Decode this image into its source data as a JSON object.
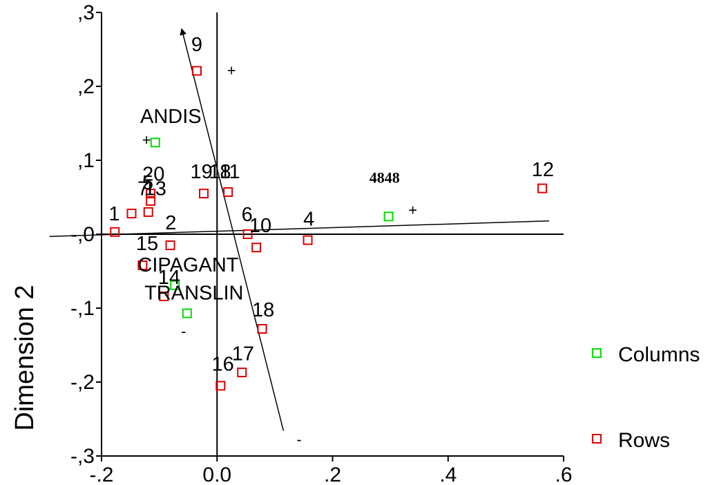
{
  "chart_data": {
    "type": "scatter",
    "title": "",
    "xlabel": "",
    "ylabel": "Dimension 2",
    "xlim": [
      -0.2,
      0.6
    ],
    "ylim": [
      -0.3,
      0.3
    ],
    "x_ticks": [
      "-,2",
      "0,0",
      ",2",
      ",4",
      ",6"
    ],
    "y_ticks": [
      ",3",
      ",2",
      ",1",
      "-,0",
      "-,1",
      "-,2",
      "-,3"
    ],
    "x_tick_values": [
      -0.2,
      0.0,
      0.2,
      0.4,
      0.6
    ],
    "y_tick_values": [
      0.3,
      0.2,
      0.1,
      0.0,
      -0.1,
      -0.2,
      -0.3
    ],
    "legend": [
      {
        "name": "Columns",
        "color": "#00dd00"
      },
      {
        "name": "Rows",
        "color": "#dd0000"
      }
    ],
    "legend_position": "right",
    "series": [
      {
        "name": "Columns",
        "color": "#00dd00",
        "points": [
          {
            "x": -0.107,
            "y": 0.124
          },
          {
            "x": -0.073,
            "y": -0.069
          },
          {
            "x": -0.052,
            "y": -0.107
          },
          {
            "x": 0.297,
            "y": 0.024
          }
        ]
      },
      {
        "name": "Rows",
        "color": "#dd0000",
        "points": [
          {
            "x": -0.035,
            "y": 0.221
          },
          {
            "x": -0.023,
            "y": 0.055
          },
          {
            "x": 0.019,
            "y": 0.057
          },
          {
            "x": -0.115,
            "y": 0.055
          },
          {
            "x": -0.115,
            "y": 0.045
          },
          {
            "x": -0.119,
            "y": 0.03
          },
          {
            "x": -0.148,
            "y": 0.028
          },
          {
            "x": -0.177,
            "y": 0.003
          },
          {
            "x": -0.081,
            "y": -0.015
          },
          {
            "x": -0.129,
            "y": -0.042
          },
          {
            "x": -0.092,
            "y": -0.084
          },
          {
            "x": 0.053,
            "y": 0.0
          },
          {
            "x": 0.068,
            "y": -0.018
          },
          {
            "x": 0.157,
            "y": -0.008
          },
          {
            "x": 0.078,
            "y": -0.128
          },
          {
            "x": 0.043,
            "y": -0.187
          },
          {
            "x": 0.006,
            "y": -0.205
          },
          {
            "x": 0.563,
            "y": 0.062
          }
        ]
      }
    ],
    "point_labels": [
      {
        "text": "9",
        "x": -0.035,
        "y": 0.257
      },
      {
        "text": "ANDIS",
        "x": -0.08,
        "y": 0.16
      },
      {
        "text": "20",
        "x": -0.11,
        "y": 0.082
      },
      {
        "text": "19",
        "x": -0.027,
        "y": 0.085
      },
      {
        "text": "18",
        "x": 0.005,
        "y": 0.085
      },
      {
        "text": "11",
        "x": 0.022,
        "y": 0.085
      },
      {
        "text": "7",
        "x": -0.128,
        "y": 0.062
      },
      {
        "text": "13",
        "x": -0.107,
        "y": 0.062
      },
      {
        "text": "5",
        "x": -0.12,
        "y": 0.07
      },
      {
        "text": "4848",
        "x": 0.29,
        "y": 0.079
      },
      {
        "text": "12",
        "x": 0.564,
        "y": 0.088
      },
      {
        "text": "1",
        "x": -0.178,
        "y": 0.028
      },
      {
        "text": "2",
        "x": -0.08,
        "y": 0.016
      },
      {
        "text": "6",
        "x": 0.052,
        "y": 0.027
      },
      {
        "text": "10",
        "x": 0.075,
        "y": 0.012
      },
      {
        "text": "4",
        "x": 0.159,
        "y": 0.021
      },
      {
        "text": "15",
        "x": -0.121,
        "y": -0.012
      },
      {
        "text": "CIPAGANT",
        "x": -0.05,
        "y": -0.041
      },
      {
        "text": "14",
        "x": -0.083,
        "y": -0.058
      },
      {
        "text": "TRANSLIN",
        "x": -0.04,
        "y": -0.079
      },
      {
        "text": "18",
        "x": 0.08,
        "y": -0.102
      },
      {
        "text": "17",
        "x": 0.045,
        "y": -0.161
      },
      {
        "text": "16",
        "x": 0.01,
        "y": -0.175
      }
    ],
    "markers": [
      {
        "text": "+",
        "x": 0.025,
        "y": 0.222
      },
      {
        "text": "+",
        "x": -0.122,
        "y": 0.128
      },
      {
        "text": "+",
        "x": 0.339,
        "y": 0.033
      },
      {
        "text": "-",
        "x": -0.058,
        "y": -0.131
      },
      {
        "text": "-",
        "x": 0.142,
        "y": -0.277
      }
    ],
    "axes_lines": [
      {
        "x1": -0.29,
        "y1": -0.003,
        "x2": 0.575,
        "y2": 0.018
      },
      {
        "x1": 0.115,
        "y1": -0.266,
        "x2": -0.061,
        "y2": 0.277
      }
    ]
  }
}
